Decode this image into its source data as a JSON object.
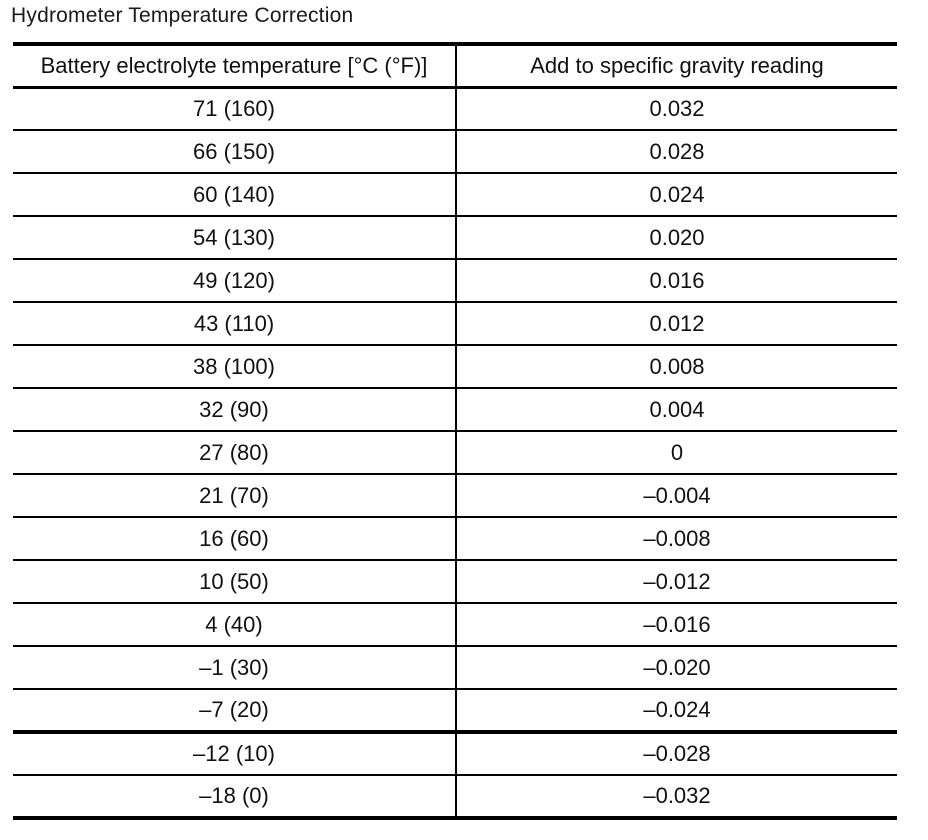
{
  "document": {
    "title": "Hydrometer Temperature Correction",
    "table": {
      "columns": [
        "Battery electrolyte temperature [°C (°F)]",
        "Add to specific gravity reading"
      ],
      "rows": [
        {
          "temp": "71 (160)",
          "correction": "0.032"
        },
        {
          "temp": "66 (150)",
          "correction": "0.028"
        },
        {
          "temp": "60 (140)",
          "correction": "0.024"
        },
        {
          "temp": "54 (130)",
          "correction": "0.020"
        },
        {
          "temp": "49 (120)",
          "correction": "0.016"
        },
        {
          "temp": "43 (110)",
          "correction": "0.012"
        },
        {
          "temp": "38 (100)",
          "correction": "0.008"
        },
        {
          "temp": "32 (90)",
          "correction": "0.004"
        },
        {
          "temp": "27 (80)",
          "correction": "0"
        },
        {
          "temp": "21 (70)",
          "correction": "–0.004"
        },
        {
          "temp": "16 (60)",
          "correction": "–0.008"
        },
        {
          "temp": "10 (50)",
          "correction": "–0.012"
        },
        {
          "temp": "4 (40)",
          "correction": "–0.016"
        },
        {
          "temp": "–1 (30)",
          "correction": "–0.020"
        },
        {
          "temp": "–7 (20)",
          "correction": "–0.024"
        },
        {
          "temp": "–12 (10)",
          "correction": "–0.028"
        },
        {
          "temp": "–18 (0)",
          "correction": "–0.032"
        }
      ]
    },
    "colors": {
      "background": "#ffffff",
      "text": "#111111",
      "border": "#000000"
    }
  }
}
